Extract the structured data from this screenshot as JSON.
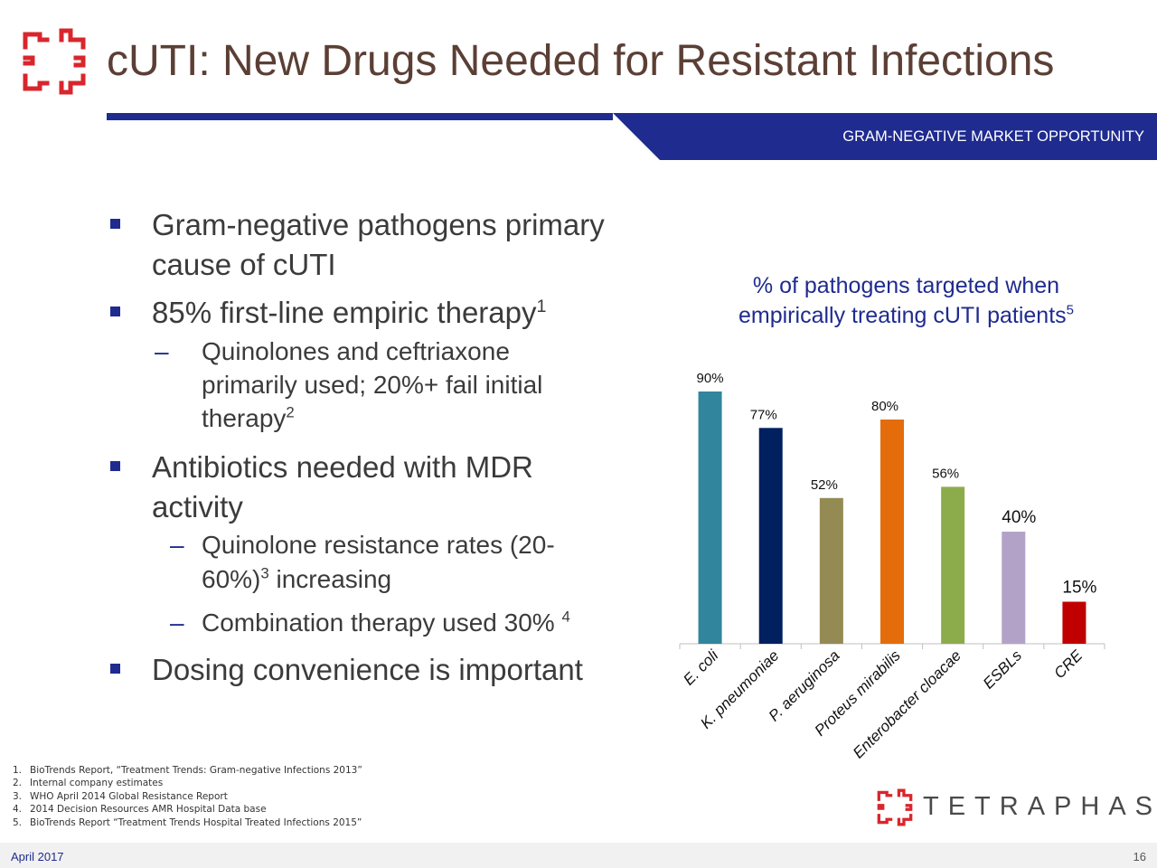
{
  "header": {
    "title": "cUTI: New Drugs Needed for Resistant Infections",
    "banner_label": "GRAM-NEGATIVE MARKET OPPORTUNITY"
  },
  "bullets": {
    "b1_line1": "Gram-negative pathogens primary",
    "b1_line2": "cause of cUTI",
    "b2_text": "85% first-line empiric therapy",
    "b2_sup": "1",
    "b2_sub1_dash": "–",
    "b2_sub1_line1": "Quinolones and ceftriaxone",
    "b2_sub1_line2": "primarily used; 20%+ fail initial",
    "b2_sub1_line3": "therapy",
    "b2_sub1_sup": "2",
    "b3_line1": "Antibiotics needed with MDR",
    "b3_line2": "activity",
    "b3_sub1_dash": "–",
    "b3_sub1_line1": "Quinolone resistance rates (20-",
    "b3_sub1_line2a": "60%)",
    "b3_sub1_sup": "3",
    "b3_sub1_line2b": " increasing",
    "b3_sub2_dash": "–",
    "b3_sub2_text": "Combination therapy used 30%",
    "b3_sub2_sup": "4",
    "b4_text": "Dosing convenience is important"
  },
  "chart_title": {
    "line1": "% of pathogens targeted when",
    "line2": "empirically treating cUTI patients",
    "sup": "5"
  },
  "chart_data": {
    "type": "bar",
    "categories": [
      "E. coli",
      "K. pneumoniae",
      "P. aeruginosa",
      "Proteus mirabilis",
      "Enterobacter cloacae",
      "ESBLs",
      "CRE"
    ],
    "values": [
      90,
      77,
      52,
      80,
      56,
      40,
      15
    ],
    "value_labels": [
      "90%",
      "77%",
      "52%",
      "80%",
      "56%",
      "40%",
      "15%"
    ],
    "colors": [
      "#31859c",
      "#002060",
      "#948a54",
      "#e46c0a",
      "#8cac4b",
      "#b3a2c7",
      "#c00000"
    ],
    "title": "% of pathogens targeted when empirically treating cUTI patients",
    "ylim": [
      0,
      100
    ],
    "grid": false
  },
  "footnotes": [
    {
      "n": "1.",
      "text": "BioTrends Report, “Treatment Trends: Gram-negative Infections 2013”"
    },
    {
      "n": "2.",
      "text": "Internal company estimates"
    },
    {
      "n": "3.",
      "text": "WHO April 2014 Global Resistance Report"
    },
    {
      "n": "4.",
      "text": "2014 Decision Resources AMR Hospital Data base"
    },
    {
      "n": "5.",
      "text": "BioTrends Report “Treatment Trends Hospital Treated Infections 2015”"
    }
  ],
  "footer": {
    "date": "April 2017",
    "page": "16",
    "company": "TETRAPHASE"
  },
  "colors": {
    "navy": "#1f2b8f",
    "title_brown": "#5b3f35",
    "logo_red": "#d9262c"
  }
}
